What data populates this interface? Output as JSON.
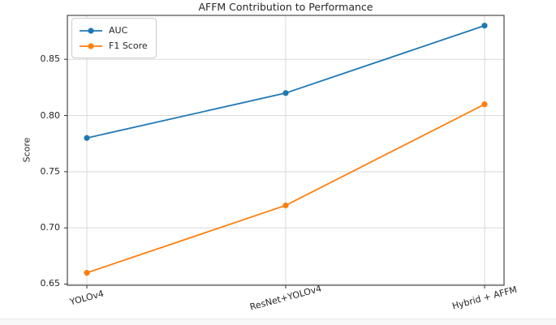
{
  "chart_data": {
    "type": "line",
    "title": "AFFM Contribution to Performance",
    "xlabel": "",
    "ylabel": "Score",
    "categories": [
      "YOLOv4",
      "ResNet+YOLOv4",
      "Hybrid + AFFM"
    ],
    "series": [
      {
        "name": "AUC",
        "color": "#1f77b4",
        "values": [
          0.78,
          0.82,
          0.88
        ]
      },
      {
        "name": "F1 Score",
        "color": "#ff7f0e",
        "values": [
          0.66,
          0.72,
          0.81
        ]
      }
    ],
    "yticks": [
      0.65,
      0.7,
      0.75,
      0.8,
      0.85
    ],
    "ylim": [
      0.6489,
      0.8891
    ],
    "grid": true,
    "legend_position": "upper left",
    "x_tick_rotation_deg": 15,
    "colors": {
      "grid": "#d9d9d9",
      "spine": "#4a4a4a",
      "tick": "#333333",
      "text": "#262626",
      "background": "#ffffff"
    }
  }
}
